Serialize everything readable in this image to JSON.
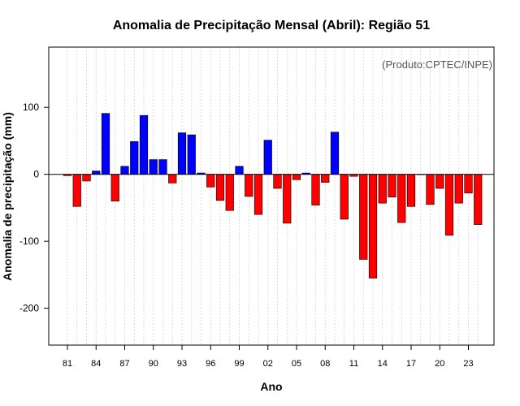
{
  "chart_data": {
    "type": "bar",
    "title": "Anomalia de Precipitação Mensal (Abril): Região 51",
    "xlabel": "Ano",
    "ylabel": "Anomalia de precipitação (mm)",
    "credit": "(Produto:CPTEC/INPE)",
    "ylim": [
      -255,
      190
    ],
    "yticks": [
      -200,
      -100,
      0,
      100
    ],
    "ytick_labels": [
      "-200",
      "-100",
      "0",
      "100"
    ],
    "x_tick_labels": [
      "81",
      "84",
      "87",
      "90",
      "93",
      "96",
      "99",
      "02",
      "05",
      "08",
      "11",
      "14",
      "17",
      "20",
      "23"
    ],
    "x_tick_every": 3,
    "grid": true,
    "positive_color": "#0000ff",
    "negative_color": "#ff0000",
    "categories": [
      "1981",
      "1982",
      "1983",
      "1984",
      "1985",
      "1986",
      "1987",
      "1988",
      "1989",
      "1990",
      "1991",
      "1992",
      "1993",
      "1994",
      "1995",
      "1996",
      "1997",
      "1998",
      "1999",
      "2000",
      "2001",
      "2002",
      "2003",
      "2004",
      "2005",
      "2006",
      "2007",
      "2008",
      "2009",
      "2010",
      "2011",
      "2012",
      "2013",
      "2014",
      "2015",
      "2016",
      "2017",
      "2018",
      "2019",
      "2020",
      "2021",
      "2022",
      "2023",
      "2024"
    ],
    "values": [
      -2,
      -48,
      -10,
      5,
      91,
      -40,
      12,
      49,
      88,
      22,
      22,
      -13,
      62,
      59,
      2,
      -19,
      -39,
      -54,
      12,
      -33,
      -60,
      51,
      -21,
      -73,
      -8,
      2,
      -46,
      -12,
      63,
      -67,
      -3,
      -127,
      -155,
      -43,
      -34,
      -72,
      -48,
      0,
      -45,
      -21,
      -91,
      -43,
      -28,
      -75
    ]
  }
}
